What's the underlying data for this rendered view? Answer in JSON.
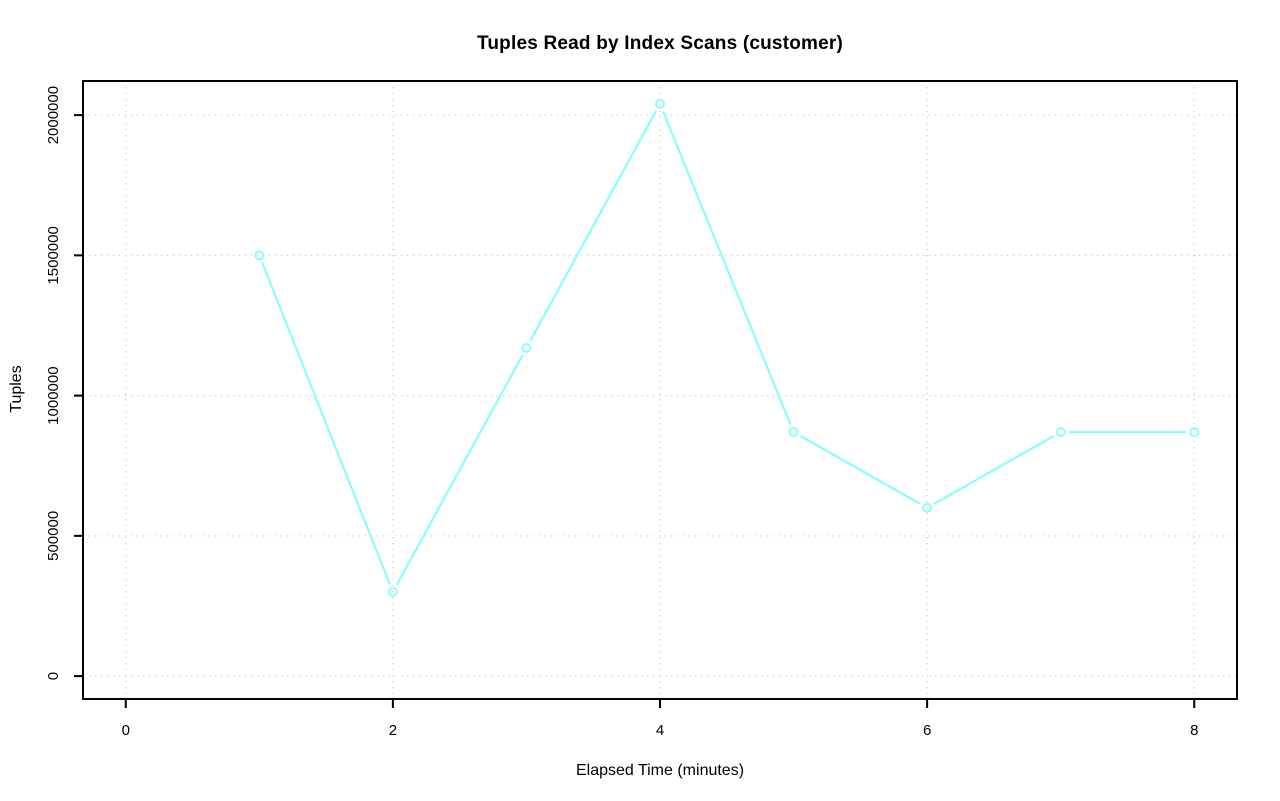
{
  "figure": {
    "background_color": "#FFFFFF"
  },
  "chart_data": {
    "type": "line",
    "title": "Tuples Read by Index Scans (customer)",
    "xlabel": "Elapsed Time (minutes)",
    "ylabel": "Tuples",
    "x": [
      1,
      2,
      3,
      4,
      5,
      6,
      7,
      8
    ],
    "values": [
      1500000,
      300000,
      1170000,
      2040000,
      870000,
      600000,
      870000,
      870000
    ],
    "x_ticks": [
      0,
      2,
      4,
      6,
      8
    ],
    "x_tick_labels": [
      "0",
      "2",
      "4",
      "6",
      "8"
    ],
    "y_ticks": [
      0,
      500000,
      1000000,
      1500000,
      2000000
    ],
    "y_tick_labels": [
      "0",
      "500000",
      "1000000",
      "1500000",
      "2000000"
    ],
    "xlim": [
      -0.32,
      8.32
    ],
    "ylim": [
      -81600,
      2121600
    ],
    "grid": true,
    "grid_style": "dotted",
    "legend": "none",
    "marker": "open-circle",
    "line_style": "segments-with-gaps-at-markers",
    "line_color": "#7FFFFF",
    "grid_color": "#C6C6C6",
    "axis_color": "#000000",
    "text_color": "#000000"
  }
}
